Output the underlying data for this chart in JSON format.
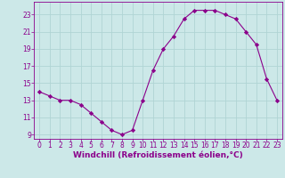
{
  "x": [
    0,
    1,
    2,
    3,
    4,
    5,
    6,
    7,
    8,
    9,
    10,
    11,
    12,
    13,
    14,
    15,
    16,
    17,
    18,
    19,
    20,
    21,
    22,
    23
  ],
  "y": [
    14.0,
    13.5,
    13.0,
    13.0,
    12.5,
    11.5,
    10.5,
    9.5,
    9.0,
    9.5,
    13.0,
    16.5,
    19.0,
    20.5,
    22.5,
    23.5,
    23.5,
    23.5,
    23.0,
    22.5,
    21.0,
    19.5,
    15.5,
    13.0
  ],
  "line_color": "#8B008B",
  "marker": "D",
  "marker_size": 2.2,
  "bg_color": "#cce8e8",
  "grid_color": "#b0d4d4",
  "xlabel": "Windchill (Refroidissement éolien,°C)",
  "xlabel_fontsize": 6.5,
  "tick_fontsize": 5.5,
  "ylim": [
    8.5,
    24.5
  ],
  "xlim": [
    -0.5,
    23.5
  ],
  "yticks": [
    9,
    11,
    13,
    15,
    17,
    19,
    21,
    23
  ],
  "xticks": [
    0,
    1,
    2,
    3,
    4,
    5,
    6,
    7,
    8,
    9,
    10,
    11,
    12,
    13,
    14,
    15,
    16,
    17,
    18,
    19,
    20,
    21,
    22,
    23
  ]
}
